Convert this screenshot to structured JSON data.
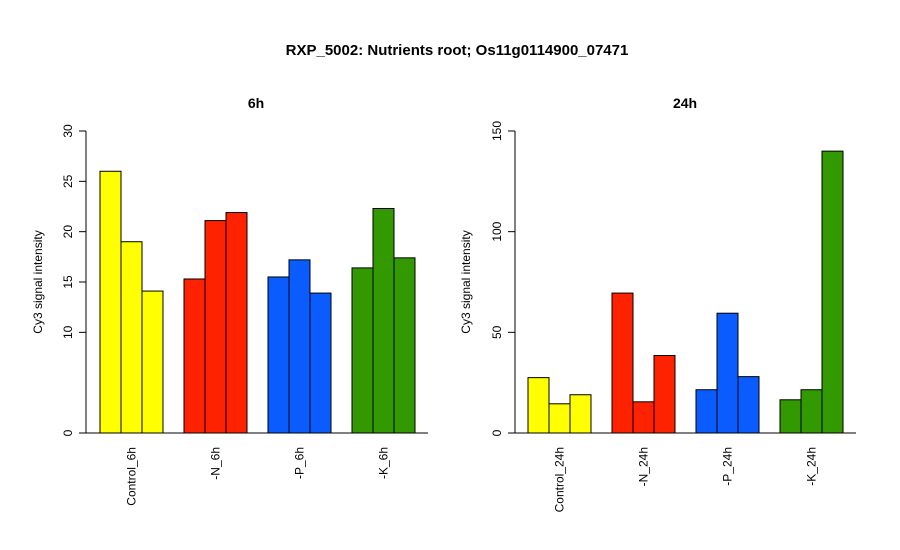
{
  "title": "RXP_5002: Nutrients root; Os11g0114900_07471",
  "colors": {
    "control": "#ffff00",
    "n": "#ff2200",
    "p": "#0a5cff",
    "k": "#339900"
  },
  "chart_data": [
    {
      "type": "bar",
      "title": "6h",
      "ylabel": "Cy3 signal intensity",
      "ylim": [
        0,
        30
      ],
      "yticks": [
        0,
        10,
        15,
        20,
        25,
        30
      ],
      "categories": [
        "Control_6h",
        "-N_6h",
        "-P_6h",
        "-K_6h"
      ],
      "groups": [
        {
          "category": "Control_6h",
          "color_key": "control",
          "values": [
            26.0,
            19.0,
            14.1
          ]
        },
        {
          "category": "-N_6h",
          "color_key": "n",
          "values": [
            15.3,
            21.1,
            21.9
          ]
        },
        {
          "category": "-P_6h",
          "color_key": "p",
          "values": [
            15.5,
            17.2,
            13.9
          ]
        },
        {
          "category": "-K_6h",
          "color_key": "k",
          "values": [
            16.4,
            22.3,
            17.4
          ]
        }
      ],
      "grid": false,
      "legend": "none"
    },
    {
      "type": "bar",
      "title": "24h",
      "ylabel": "Cy3 signal intensity",
      "ylim": [
        0,
        150
      ],
      "yticks": [
        0,
        50,
        100,
        150
      ],
      "categories": [
        "Control_24h",
        "-N_24h",
        "-P_24h",
        "-K_24h"
      ],
      "groups": [
        {
          "category": "Control_24h",
          "color_key": "control",
          "values": [
            27.5,
            14.5,
            19.0
          ]
        },
        {
          "category": "-N_24h",
          "color_key": "n",
          "values": [
            69.5,
            15.5,
            38.5
          ]
        },
        {
          "category": "-P_24h",
          "color_key": "p",
          "values": [
            21.5,
            59.5,
            28.0
          ]
        },
        {
          "category": "-K_24h",
          "color_key": "k",
          "values": [
            16.5,
            21.5,
            140.0
          ]
        }
      ],
      "grid": false,
      "legend": "none"
    }
  ]
}
